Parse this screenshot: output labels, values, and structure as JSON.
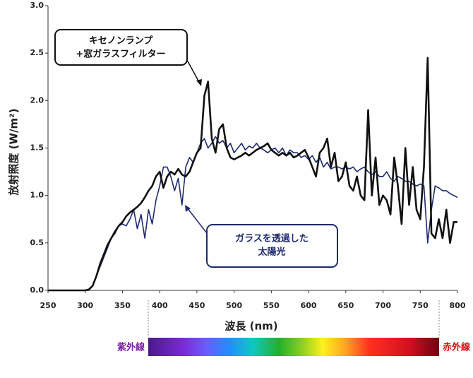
{
  "chart_data": {
    "type": "line",
    "ylabel": "放射照度 (W/m²)",
    "xlabel": "波長 (nm)",
    "x": [
      250,
      255,
      260,
      265,
      270,
      275,
      280,
      285,
      290,
      295,
      300,
      305,
      310,
      315,
      320,
      325,
      330,
      335,
      340,
      345,
      350,
      355,
      360,
      365,
      370,
      375,
      380,
      385,
      390,
      395,
      400,
      405,
      410,
      415,
      420,
      425,
      430,
      435,
      440,
      445,
      450,
      455,
      460,
      465,
      470,
      475,
      480,
      485,
      490,
      495,
      500,
      505,
      510,
      515,
      520,
      525,
      530,
      535,
      540,
      545,
      550,
      555,
      560,
      565,
      570,
      575,
      580,
      585,
      590,
      595,
      600,
      605,
      610,
      615,
      620,
      625,
      630,
      635,
      640,
      645,
      650,
      655,
      660,
      665,
      670,
      675,
      680,
      685,
      690,
      695,
      700,
      705,
      710,
      715,
      720,
      725,
      730,
      735,
      740,
      745,
      750,
      755,
      760,
      765,
      770,
      775,
      780,
      785,
      790,
      795,
      800
    ],
    "series": [
      {
        "color": "#111111",
        "values": [
          0,
          0,
          0,
          0,
          0,
          0,
          0,
          0,
          0,
          0,
          0,
          0.01,
          0.05,
          0.15,
          0.28,
          0.38,
          0.48,
          0.55,
          0.62,
          0.68,
          0.72,
          0.78,
          0.82,
          0.85,
          0.88,
          0.92,
          0.98,
          1.05,
          1.1,
          1.2,
          1.25,
          1.08,
          1.2,
          1.25,
          1.22,
          1.28,
          1.22,
          1.2,
          1.25,
          1.35,
          1.45,
          1.5,
          2.05,
          2.2,
          1.6,
          1.45,
          1.7,
          1.75,
          1.5,
          1.4,
          1.38,
          1.4,
          1.42,
          1.45,
          1.42,
          1.45,
          1.48,
          1.5,
          1.52,
          1.55,
          1.48,
          1.45,
          1.42,
          1.45,
          1.42,
          1.45,
          1.4,
          1.42,
          1.45,
          1.48,
          1.4,
          1.3,
          1.2,
          1.45,
          1.5,
          1.6,
          1.3,
          1.45,
          1.15,
          1.2,
          1.35,
          1.1,
          1.05,
          1.2,
          1.0,
          0.95,
          1.9,
          1.0,
          1.4,
          0.9,
          1.0,
          0.95,
          0.8,
          1.4,
          1.1,
          0.7,
          1.5,
          0.9,
          1.3,
          0.85,
          0.75,
          1.3,
          2.45,
          0.6,
          0.55,
          0.75,
          0.55,
          0.85,
          0.5,
          0.72,
          0.72
        ]
      },
      {
        "color": "#1f2a6e",
        "values": [
          0,
          0,
          0,
          0,
          0,
          0,
          0,
          0,
          0,
          0,
          0,
          0,
          0.05,
          0.15,
          0.25,
          0.35,
          0.45,
          0.55,
          0.6,
          0.68,
          0.7,
          0.68,
          0.75,
          0.85,
          0.65,
          0.8,
          0.55,
          0.85,
          0.7,
          0.95,
          1.1,
          1.3,
          1.3,
          1.2,
          1.05,
          1.18,
          0.9,
          1.3,
          1.4,
          1.35,
          1.45,
          1.55,
          1.6,
          1.5,
          1.55,
          1.62,
          1.55,
          1.58,
          1.5,
          1.55,
          1.45,
          1.5,
          1.55,
          1.48,
          1.52,
          1.5,
          1.55,
          1.5,
          1.48,
          1.45,
          1.48,
          1.5,
          1.45,
          1.5,
          1.42,
          1.48,
          1.45,
          1.45,
          1.4,
          1.42,
          1.38,
          1.42,
          1.35,
          1.4,
          1.3,
          1.35,
          1.28,
          1.3,
          1.3,
          1.28,
          1.3,
          1.28,
          1.3,
          1.25,
          1.28,
          1.3,
          1.25,
          1.22,
          1.25,
          1.2,
          1.2,
          1.25,
          1.18,
          1.15,
          1.2,
          1.18,
          1.15,
          1.15,
          1.12,
          1.1,
          1.12,
          1.1,
          0.5,
          0.85,
          1.1,
          1.08,
          1.05,
          1.05,
          1.02,
          1.0,
          0.98
        ]
      }
    ],
    "xlim": [
      250,
      800
    ],
    "xticks": [
      250,
      300,
      350,
      400,
      450,
      500,
      550,
      600,
      650,
      700,
      750,
      800
    ],
    "ylim": [
      0,
      3
    ],
    "yticks": [
      {
        "value": 0,
        "label": "0.0"
      },
      0.5,
      {
        "value": 1,
        "label": "1.0"
      },
      1.5,
      {
        "value": 2,
        "label": "2.0"
      },
      2.5,
      {
        "value": 3,
        "label": "3.0"
      }
    ],
    "annotations": [
      [
        "キセノンランプ",
        "+窓ガラスフィルター"
      ],
      [
        "ガラスを透過した",
        "太陽光"
      ]
    ],
    "spectrum_labels": [
      "紫外線",
      "赤外線"
    ]
  }
}
